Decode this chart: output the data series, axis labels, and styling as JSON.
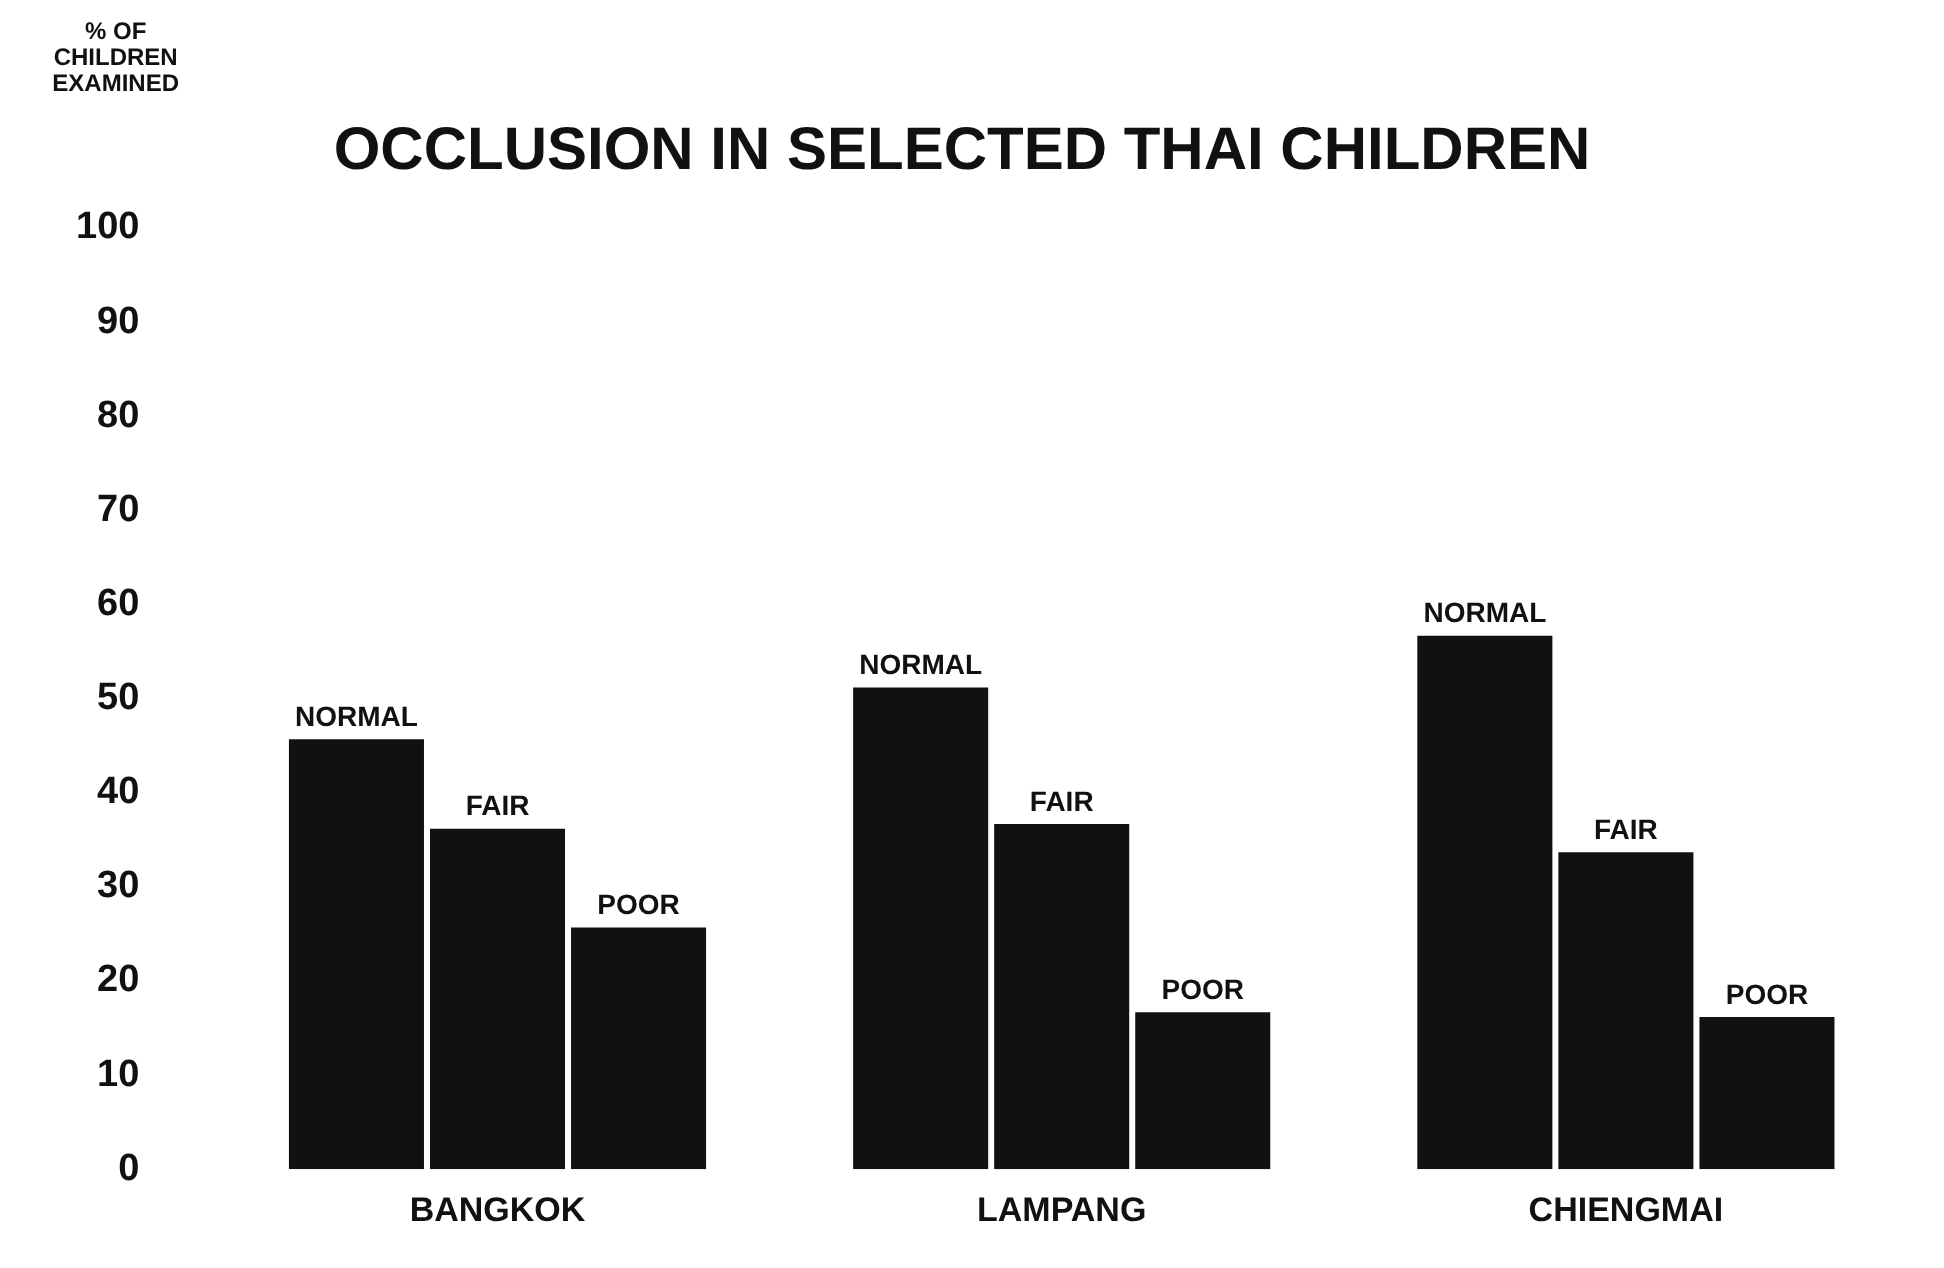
{
  "chart_data": {
    "type": "bar",
    "title": "OCCLUSION IN SELECTED THAI CHILDREN",
    "ylabel": "% OF CHILDREN EXAMINED",
    "categories": [
      "BANGKOK",
      "LAMPANG",
      "CHIENGMAI"
    ],
    "series": [
      {
        "name": "NORMAL",
        "color": "#111111",
        "values": [
          46,
          51.5,
          57
        ]
      },
      {
        "name": "FAIR",
        "color": "#111111",
        "values": [
          36.5,
          37,
          34
        ]
      },
      {
        "name": "POOR",
        "color": "#111111",
        "values": [
          26,
          17,
          16.5
        ]
      }
    ],
    "ylim": [
      0,
      100
    ],
    "yticks": [
      0,
      10,
      20,
      30,
      40,
      50,
      60,
      70,
      80,
      90,
      100
    ],
    "grid": false,
    "legend": false
  }
}
